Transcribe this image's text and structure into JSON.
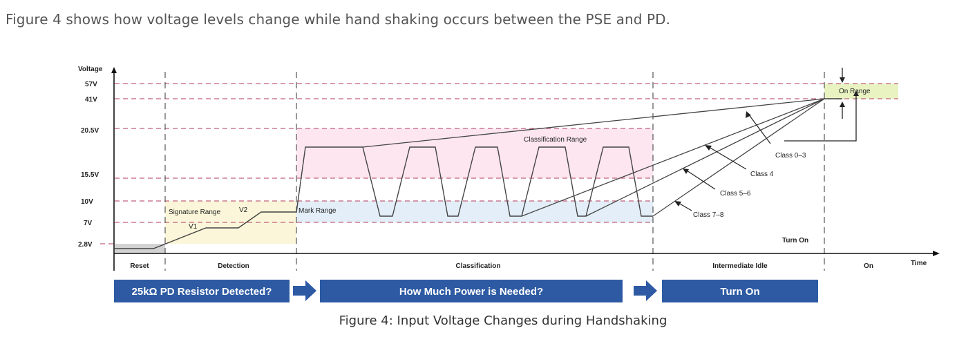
{
  "intro_text": "Figure 4 shows how voltage levels change while hand shaking occurs between the PSE and PD.",
  "caption": "Figure 4: Input Voltage Changes during Handshaking",
  "axes": {
    "y_label": "Voltage",
    "x_label": "Time"
  },
  "voltage_levels": [
    "57V",
    "41V",
    "20.5V",
    "15.5V",
    "10V",
    "7V",
    "2.8V"
  ],
  "ranges": {
    "signature": "Signature Range",
    "mark": "Mark Range",
    "classification": "Classification Range",
    "on": "On Range"
  },
  "curve_labels": {
    "v1": "V1",
    "v2": "V2"
  },
  "class_labels": [
    "Class 0–3",
    "Class 4",
    "Class 5–6",
    "Class 7–8"
  ],
  "turn_on_label": "Turn On",
  "phases": [
    "Reset",
    "Detection",
    "Classification",
    "Intermediate Idle",
    "On"
  ],
  "banners": [
    "25kΩ PD Resistor Detected?",
    "How Much Power is Needed?",
    "Turn On"
  ],
  "colors": {
    "banner": "#2d5aa3",
    "dash": "#c0607a",
    "signature_fill": "#fbf6d9",
    "mark_fill": "#e3eef8",
    "classification_fill": "#fde6f0",
    "on_fill": "#e9f3c2",
    "text_gray": "#555555"
  }
}
